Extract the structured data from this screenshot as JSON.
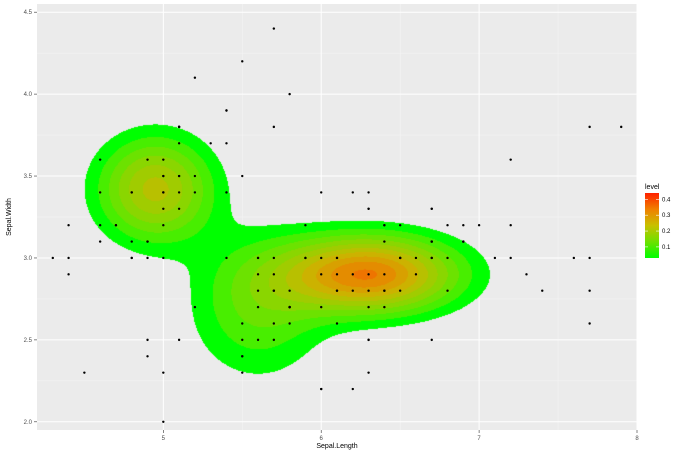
{
  "chart_data": {
    "type": "scatter",
    "subtype": "filled-2d-density-contour",
    "xlabel": "Sepal.Length",
    "ylabel": "Sepal.Width",
    "xlim": [
      4.2,
      8.0
    ],
    "ylim": [
      1.95,
      4.55
    ],
    "x_ticks": [
      5,
      6,
      7,
      8
    ],
    "y_ticks": [
      2.0,
      2.5,
      3.0,
      3.5,
      4.0,
      4.5
    ],
    "x_tick_labels": [
      "5",
      "6",
      "7",
      "8"
    ],
    "y_tick_labels": [
      "2.0",
      "2.5",
      "3.0",
      "3.5",
      "4.0",
      "4.5"
    ],
    "grid": true,
    "background": "#ebebeb",
    "legend": {
      "title": "level",
      "position": "right",
      "breaks": [
        0.1,
        0.2,
        0.3,
        0.4
      ],
      "labels": [
        "0.1",
        "0.2",
        "0.3",
        "0.4"
      ],
      "range": [
        0.03,
        0.44
      ],
      "low_color": "#00ff00",
      "high_color": "#ff0000"
    },
    "density_peaks": [
      {
        "x": 6.3,
        "y": 2.9,
        "sx": 0.38,
        "sy": 0.16,
        "h": 0.31
      },
      {
        "x": 4.95,
        "y": 3.42,
        "sx": 0.25,
        "sy": 0.22,
        "h": 0.2
      },
      {
        "x": 5.6,
        "y": 2.7,
        "sx": 0.3,
        "sy": 0.3,
        "h": 0.1
      }
    ],
    "points": [
      [
        5.1,
        3.5
      ],
      [
        4.9,
        3.0
      ],
      [
        4.7,
        3.2
      ],
      [
        4.6,
        3.1
      ],
      [
        5.0,
        3.6
      ],
      [
        5.4,
        3.9
      ],
      [
        4.6,
        3.4
      ],
      [
        5.0,
        3.4
      ],
      [
        4.4,
        2.9
      ],
      [
        4.9,
        3.1
      ],
      [
        5.4,
        3.7
      ],
      [
        4.8,
        3.4
      ],
      [
        4.8,
        3.0
      ],
      [
        4.3,
        3.0
      ],
      [
        5.8,
        4.0
      ],
      [
        5.7,
        4.4
      ],
      [
        5.4,
        3.9
      ],
      [
        5.1,
        3.5
      ],
      [
        5.7,
        3.8
      ],
      [
        5.1,
        3.8
      ],
      [
        5.4,
        3.4
      ],
      [
        5.1,
        3.7
      ],
      [
        4.6,
        3.6
      ],
      [
        5.1,
        3.3
      ],
      [
        4.8,
        3.4
      ],
      [
        5.0,
        3.0
      ],
      [
        5.0,
        3.4
      ],
      [
        5.2,
        3.5
      ],
      [
        5.2,
        3.4
      ],
      [
        4.7,
        3.2
      ],
      [
        4.8,
        3.1
      ],
      [
        5.4,
        3.4
      ],
      [
        5.2,
        4.1
      ],
      [
        5.5,
        4.2
      ],
      [
        4.9,
        3.1
      ],
      [
        5.0,
        3.2
      ],
      [
        5.5,
        3.5
      ],
      [
        4.9,
        3.6
      ],
      [
        4.4,
        3.0
      ],
      [
        5.1,
        3.4
      ],
      [
        5.0,
        3.5
      ],
      [
        4.5,
        2.3
      ],
      [
        4.4,
        3.2
      ],
      [
        5.0,
        3.5
      ],
      [
        5.1,
        3.8
      ],
      [
        4.8,
        3.0
      ],
      [
        5.1,
        3.8
      ],
      [
        4.6,
        3.2
      ],
      [
        5.3,
        3.7
      ],
      [
        5.0,
        3.3
      ],
      [
        7.0,
        3.2
      ],
      [
        6.4,
        3.2
      ],
      [
        6.9,
        3.1
      ],
      [
        5.5,
        2.3
      ],
      [
        6.5,
        2.8
      ],
      [
        5.7,
        2.8
      ],
      [
        6.3,
        3.3
      ],
      [
        4.9,
        2.4
      ],
      [
        6.6,
        2.9
      ],
      [
        5.2,
        2.7
      ],
      [
        5.0,
        2.0
      ],
      [
        5.9,
        3.0
      ],
      [
        6.0,
        2.2
      ],
      [
        6.1,
        2.9
      ],
      [
        5.6,
        2.9
      ],
      [
        6.7,
        3.1
      ],
      [
        5.6,
        3.0
      ],
      [
        5.8,
        2.7
      ],
      [
        6.2,
        2.2
      ],
      [
        5.6,
        2.5
      ],
      [
        5.9,
        3.2
      ],
      [
        6.1,
        2.8
      ],
      [
        6.3,
        2.5
      ],
      [
        6.1,
        2.8
      ],
      [
        6.4,
        2.9
      ],
      [
        6.6,
        3.0
      ],
      [
        6.8,
        2.8
      ],
      [
        6.7,
        3.0
      ],
      [
        6.0,
        2.9
      ],
      [
        5.7,
        2.6
      ],
      [
        5.5,
        2.4
      ],
      [
        5.5,
        2.4
      ],
      [
        5.8,
        2.7
      ],
      [
        6.0,
        2.7
      ],
      [
        5.4,
        3.0
      ],
      [
        6.0,
        3.4
      ],
      [
        6.7,
        3.1
      ],
      [
        6.3,
        2.3
      ],
      [
        5.6,
        3.0
      ],
      [
        5.5,
        2.5
      ],
      [
        5.5,
        2.6
      ],
      [
        6.1,
        3.0
      ],
      [
        5.8,
        2.6
      ],
      [
        5.0,
        2.3
      ],
      [
        5.6,
        2.7
      ],
      [
        5.7,
        3.0
      ],
      [
        5.7,
        2.9
      ],
      [
        6.2,
        2.9
      ],
      [
        5.1,
        2.5
      ],
      [
        5.7,
        2.8
      ],
      [
        6.3,
        3.3
      ],
      [
        5.8,
        2.7
      ],
      [
        7.1,
        3.0
      ],
      [
        6.3,
        2.9
      ],
      [
        6.5,
        3.0
      ],
      [
        7.6,
        3.0
      ],
      [
        4.9,
        2.5
      ],
      [
        7.3,
        2.9
      ],
      [
        6.7,
        2.5
      ],
      [
        7.2,
        3.6
      ],
      [
        6.5,
        3.2
      ],
      [
        6.4,
        2.7
      ],
      [
        6.8,
        3.0
      ],
      [
        5.7,
        2.5
      ],
      [
        5.8,
        2.8
      ],
      [
        6.4,
        3.2
      ],
      [
        6.5,
        3.0
      ],
      [
        7.7,
        3.8
      ],
      [
        7.7,
        2.6
      ],
      [
        6.0,
        2.2
      ],
      [
        6.9,
        3.2
      ],
      [
        5.6,
        2.8
      ],
      [
        7.7,
        2.8
      ],
      [
        6.3,
        2.7
      ],
      [
        6.7,
        3.3
      ],
      [
        7.2,
        3.2
      ],
      [
        6.2,
        2.8
      ],
      [
        6.1,
        3.0
      ],
      [
        6.4,
        2.8
      ],
      [
        7.2,
        3.0
      ],
      [
        7.4,
        2.8
      ],
      [
        7.9,
        3.8
      ],
      [
        6.4,
        2.8
      ],
      [
        6.3,
        2.8
      ],
      [
        6.1,
        2.6
      ],
      [
        7.7,
        3.0
      ],
      [
        6.3,
        3.4
      ],
      [
        6.4,
        3.1
      ],
      [
        6.0,
        3.0
      ],
      [
        6.9,
        3.1
      ],
      [
        6.7,
        3.1
      ],
      [
        6.9,
        3.1
      ],
      [
        5.8,
        2.7
      ],
      [
        6.8,
        3.2
      ],
      [
        6.7,
        3.3
      ],
      [
        6.7,
        3.0
      ],
      [
        6.3,
        2.5
      ],
      [
        6.5,
        3.0
      ],
      [
        6.2,
        3.4
      ],
      [
        5.9,
        3.0
      ]
    ]
  }
}
